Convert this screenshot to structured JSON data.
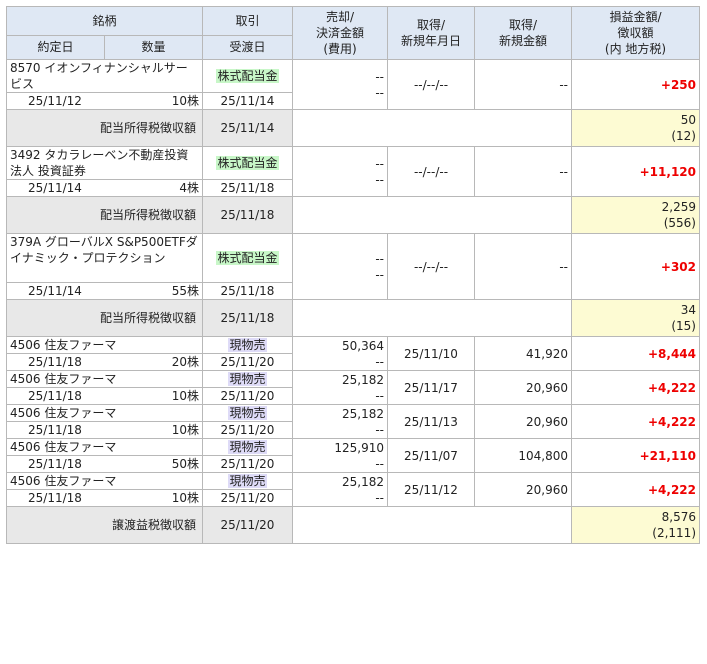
{
  "header": {
    "meigara": "銘柄",
    "yakujo": "約定日",
    "suryo": "数量",
    "torihiki": "取引",
    "ukewatashi": "受渡日",
    "baikyaku": [
      "売却/",
      "決済金額",
      "(費用)"
    ],
    "shutoku_date": [
      "取得/",
      "新規年月日"
    ],
    "shutoku_amt": [
      "取得/",
      "新規金額"
    ],
    "soneki": [
      "損益金額/",
      "徴収額",
      "(内 地方税)"
    ]
  },
  "rows": [
    {
      "name": "8570 イオンフィナンシャルサービス",
      "date": "25/11/12",
      "qty": "10株",
      "type": "株式配当金",
      "settle": "25/11/14",
      "sale": "--",
      "sale2": "--",
      "acq_date": "--/--/--",
      "acq_amt": "--",
      "pl": "+250",
      "tax": {
        "label": "配当所得税徴収額",
        "date": "25/11/14",
        "amt": "50",
        "local": "(12)"
      }
    },
    {
      "name": "3492 タカラレーベン不動産投資法人 投資証券",
      "date": "25/11/14",
      "qty": "4株",
      "type": "株式配当金",
      "settle": "25/11/18",
      "sale": "--",
      "sale2": "--",
      "acq_date": "--/--/--",
      "acq_amt": "--",
      "pl": "+11,120",
      "tax": {
        "label": "配当所得税徴収額",
        "date": "25/11/18",
        "amt": "2,259",
        "local": "(556)"
      }
    },
    {
      "name": "379A グローバルX S&P500ETFダイナミック・プロテクション",
      "date": "25/11/14",
      "qty": "55株",
      "type": "株式配当金",
      "settle": "25/11/18",
      "sale": "--",
      "sale2": "--",
      "acq_date": "--/--/--",
      "acq_amt": "--",
      "pl": "+302",
      "tax": {
        "label": "配当所得税徴収額",
        "date": "25/11/18",
        "amt": "34",
        "local": "(15)"
      }
    },
    {
      "name": "4506 住友ファーマ",
      "date": "25/11/18",
      "qty": "20株",
      "type": "現物売",
      "settle": "25/11/20",
      "sale": "50,364",
      "sale2": "--",
      "acq_date": "25/11/10",
      "acq_amt": "41,920",
      "pl": "+8,444"
    },
    {
      "name": "4506 住友ファーマ",
      "date": "25/11/18",
      "qty": "10株",
      "type": "現物売",
      "settle": "25/11/20",
      "sale": "25,182",
      "sale2": "--",
      "acq_date": "25/11/17",
      "acq_amt": "20,960",
      "pl": "+4,222"
    },
    {
      "name": "4506 住友ファーマ",
      "date": "25/11/18",
      "qty": "10株",
      "type": "現物売",
      "settle": "25/11/20",
      "sale": "25,182",
      "sale2": "--",
      "acq_date": "25/11/13",
      "acq_amt": "20,960",
      "pl": "+4,222"
    },
    {
      "name": "4506 住友ファーマ",
      "date": "25/11/18",
      "qty": "50株",
      "type": "現物売",
      "settle": "25/11/20",
      "sale": "125,910",
      "sale2": "--",
      "acq_date": "25/11/07",
      "acq_amt": "104,800",
      "pl": "+21,110"
    },
    {
      "name": "4506 住友ファーマ",
      "date": "25/11/18",
      "qty": "10株",
      "type": "現物売",
      "settle": "25/11/20",
      "sale": "25,182",
      "sale2": "--",
      "acq_date": "25/11/12",
      "acq_amt": "20,960",
      "pl": "+4,222"
    }
  ],
  "footer": {
    "label": "譲渡益税徴収額",
    "date": "25/11/20",
    "amt": "8,576",
    "local": "(2,111)"
  }
}
